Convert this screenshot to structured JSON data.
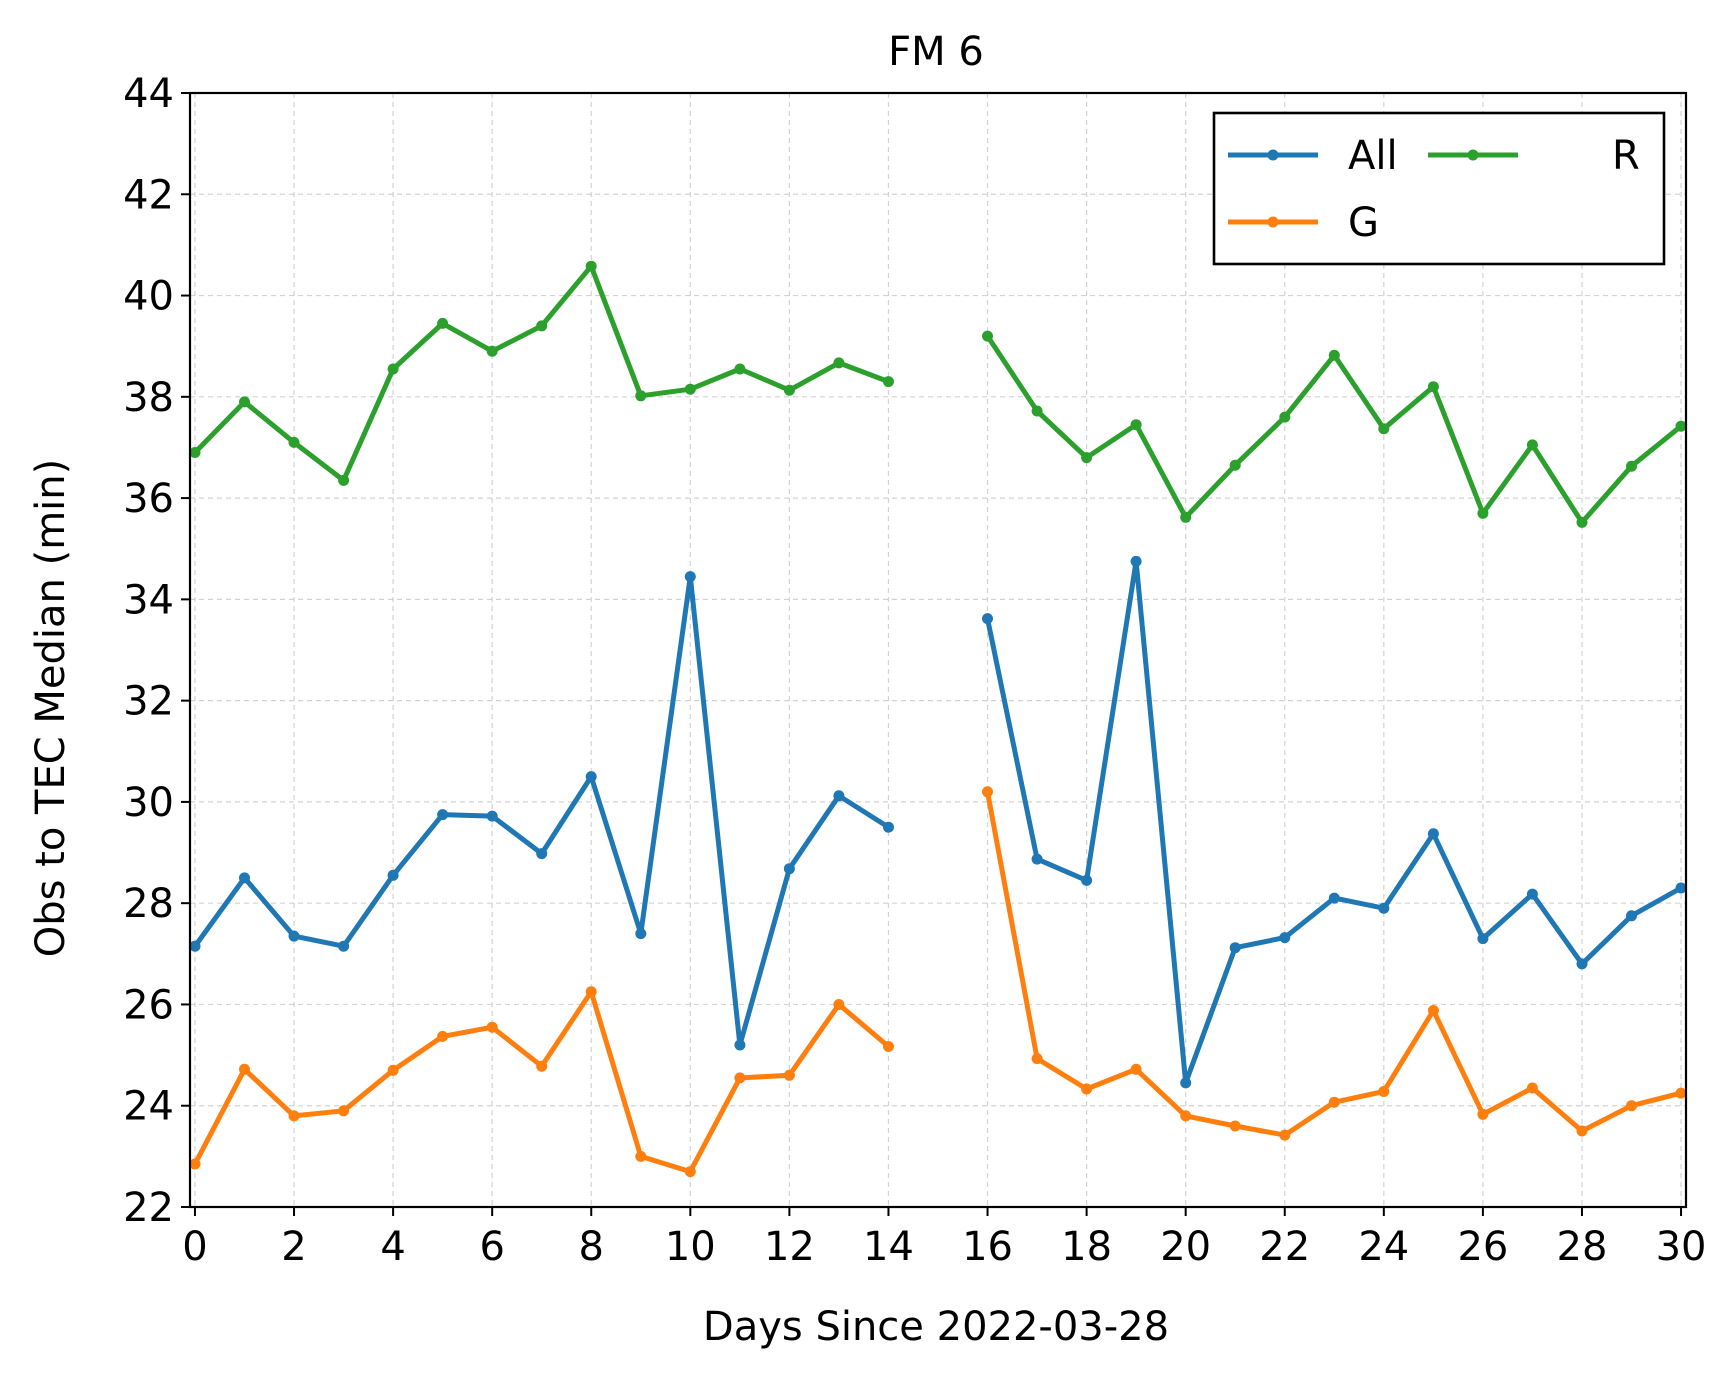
{
  "chart_data": {
    "type": "line",
    "title": "FM 6",
    "xlabel": "Days Since 2022-03-28",
    "ylabel": "Obs to TEC Median (min)",
    "xlim": [
      -0.1,
      30.1
    ],
    "ylim": [
      22,
      44
    ],
    "xticks": [
      0,
      2,
      4,
      6,
      8,
      10,
      12,
      14,
      16,
      18,
      20,
      22,
      24,
      26,
      28,
      30
    ],
    "yticks": [
      22,
      24,
      26,
      28,
      30,
      32,
      34,
      36,
      38,
      40,
      42,
      44
    ],
    "grid": true,
    "legend": {
      "position": "top-right",
      "columns": 2
    },
    "x": [
      0,
      1,
      2,
      3,
      4,
      5,
      6,
      7,
      8,
      9,
      10,
      11,
      12,
      13,
      14,
      15,
      16,
      17,
      18,
      19,
      20,
      21,
      22,
      23,
      24,
      25,
      26,
      27,
      28,
      29,
      30
    ],
    "series": [
      {
        "name": "All",
        "color": "#1f77b4",
        "values": [
          27.15,
          28.5,
          27.35,
          27.15,
          28.55,
          29.75,
          29.72,
          28.98,
          30.5,
          27.4,
          34.45,
          25.2,
          28.68,
          30.12,
          29.5,
          null,
          33.62,
          28.87,
          28.45,
          34.75,
          24.45,
          27.12,
          27.32,
          28.1,
          27.9,
          29.37,
          27.3,
          28.18,
          26.8,
          27.75,
          28.3
        ]
      },
      {
        "name": "G",
        "color": "#ff7f0e",
        "values": [
          22.85,
          24.72,
          23.8,
          23.9,
          24.7,
          25.37,
          25.55,
          24.78,
          26.25,
          23.0,
          22.7,
          24.55,
          24.6,
          26.0,
          25.17,
          null,
          30.2,
          24.93,
          24.33,
          24.72,
          23.8,
          23.6,
          23.42,
          24.07,
          24.28,
          25.88,
          23.83,
          24.35,
          23.5,
          24.0,
          24.25
        ]
      },
      {
        "name": "R",
        "color": "#2ca02c",
        "values": [
          36.9,
          37.9,
          37.1,
          36.35,
          38.55,
          39.45,
          38.9,
          39.4,
          40.58,
          38.02,
          38.15,
          38.55,
          38.13,
          38.67,
          38.3,
          null,
          39.2,
          37.72,
          36.8,
          37.45,
          35.62,
          36.65,
          37.6,
          38.82,
          37.37,
          38.2,
          35.7,
          37.05,
          35.52,
          36.63,
          37.42
        ]
      }
    ]
  }
}
